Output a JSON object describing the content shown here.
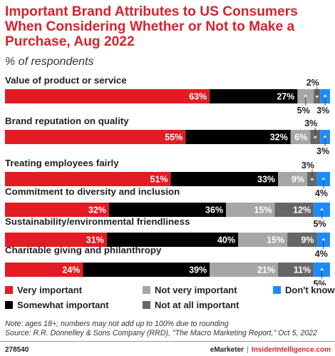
{
  "chart_data": {
    "type": "bar",
    "orientation": "horizontal",
    "stacked": true,
    "title": "Important Brand Attributes to US Consumers When Considering Whether or Not to Make a Purchase, Aug 2022",
    "subtitle": "% of respondents",
    "xlim": [
      0,
      100
    ],
    "categories": [
      "Value of product or service",
      "Brand reputation on quality",
      "Treating employees fairly",
      "Commitment to diversity and inclusion",
      "Sustainability/environmental friendliness",
      "Charitable giving and philanthropy"
    ],
    "series": [
      {
        "name": "Very important",
        "color": "#e31b23",
        "values": [
          63,
          55,
          51,
          32,
          31,
          24
        ]
      },
      {
        "name": "Somewhat important",
        "color": "#000000",
        "values": [
          27,
          32,
          33,
          36,
          40,
          39
        ]
      },
      {
        "name": "Not very important",
        "color": "#a6a6a6",
        "values": [
          5,
          6,
          9,
          15,
          15,
          21
        ]
      },
      {
        "name": "Not at all important",
        "color": "#666666",
        "values": [
          2,
          3,
          3,
          12,
          9,
          11
        ]
      },
      {
        "name": "Don't know",
        "color": "#1a8cff",
        "values": [
          3,
          3,
          4,
          5,
          4,
          5
        ]
      }
    ],
    "legend_position": "bottom",
    "grid": false
  },
  "note": "Note: ages 18+; numbers may not add up to 100% due to rounding",
  "source": "Source: R.R. Donnelley & Sons Company (RRD), \"The Macro Marketing Report,\" Oct 5, 2022",
  "footer": {
    "chart_id": "278540",
    "brand": "eMarketer",
    "separator": "|",
    "site": "InsiderIntelligence.com"
  }
}
